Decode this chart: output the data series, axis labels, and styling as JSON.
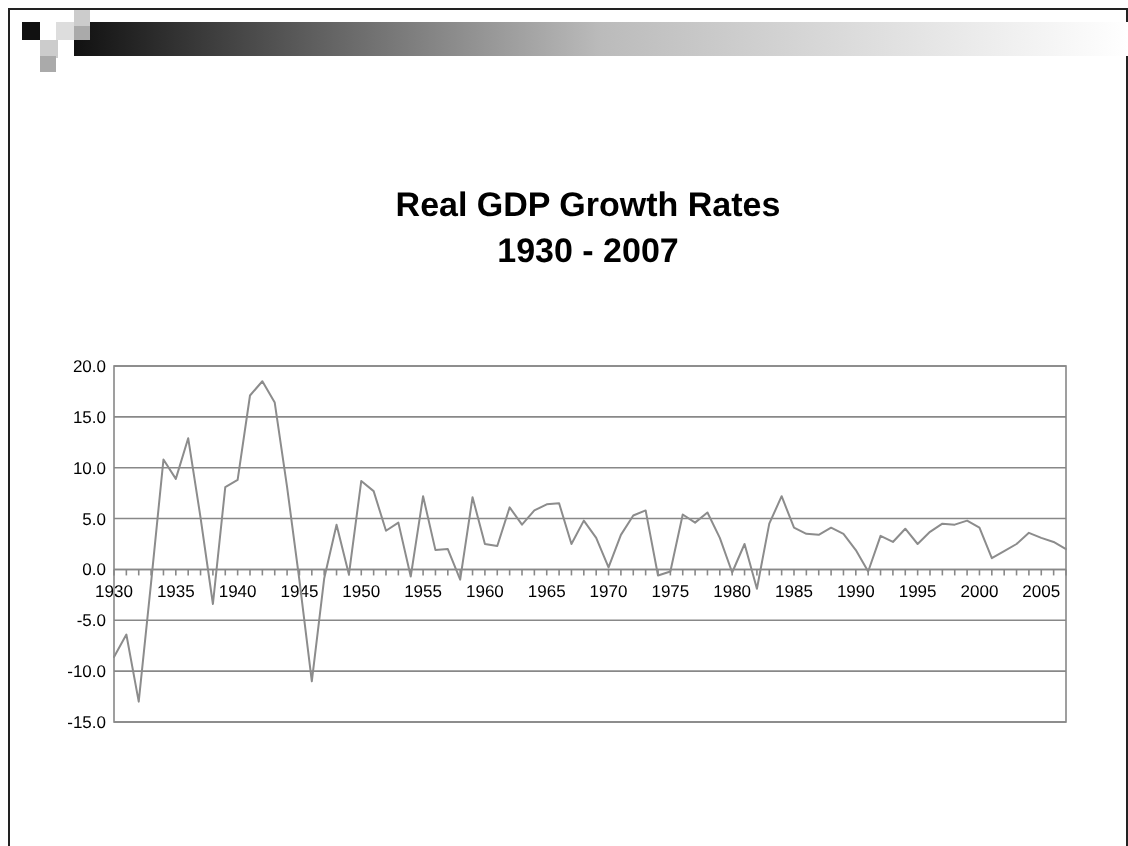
{
  "chart_data": {
    "type": "line",
    "title": "Real GDP Growth Rates\n1930 - 2007",
    "x": [
      1930,
      1931,
      1932,
      1933,
      1934,
      1935,
      1936,
      1937,
      1938,
      1939,
      1940,
      1941,
      1942,
      1943,
      1944,
      1945,
      1946,
      1947,
      1948,
      1949,
      1950,
      1951,
      1952,
      1953,
      1954,
      1955,
      1956,
      1957,
      1958,
      1959,
      1960,
      1961,
      1962,
      1963,
      1964,
      1965,
      1966,
      1967,
      1968,
      1969,
      1970,
      1971,
      1972,
      1973,
      1974,
      1975,
      1976,
      1977,
      1978,
      1979,
      1980,
      1981,
      1982,
      1983,
      1984,
      1985,
      1986,
      1987,
      1988,
      1989,
      1990,
      1991,
      1992,
      1993,
      1994,
      1995,
      1996,
      1997,
      1998,
      1999,
      2000,
      2001,
      2002,
      2003,
      2004,
      2005,
      2006,
      2007
    ],
    "series": [
      {
        "color": "#8c8c8c",
        "values": [
          -8.6,
          -6.4,
          -13.0,
          -1.3,
          10.8,
          8.9,
          12.9,
          5.1,
          -3.4,
          8.1,
          8.8,
          17.1,
          18.5,
          16.4,
          8.1,
          -1.1,
          -11.0,
          -0.9,
          4.4,
          -0.5,
          8.7,
          7.7,
          3.8,
          4.6,
          -0.7,
          7.2,
          1.9,
          2.0,
          -1.0,
          7.1,
          2.5,
          2.3,
          6.1,
          4.4,
          5.8,
          6.4,
          6.5,
          2.5,
          4.8,
          3.1,
          0.2,
          3.4,
          5.3,
          5.8,
          -0.6,
          -0.2,
          5.4,
          4.6,
          5.6,
          3.1,
          -0.3,
          2.5,
          -1.9,
          4.5,
          7.2,
          4.1,
          3.5,
          3.4,
          4.1,
          3.5,
          1.9,
          -0.2,
          3.3,
          2.7,
          4.0,
          2.5,
          3.7,
          4.5,
          4.4,
          4.8,
          4.1,
          1.1,
          1.8,
          2.5,
          3.6,
          3.1,
          2.7,
          2.0
        ]
      }
    ],
    "xlim": [
      1930,
      2007
    ],
    "xticks": [
      1930,
      {
        "value": 1931,
        "label": null
      },
      {
        "value": 1932,
        "label": null
      },
      {
        "value": 1933,
        "label": null
      },
      {
        "value": 1934,
        "label": null
      },
      1935,
      {
        "value": 1936,
        "label": null
      },
      {
        "value": 1937,
        "label": null
      },
      {
        "value": 1938,
        "label": null
      },
      {
        "value": 1939,
        "label": null
      },
      1940,
      {
        "value": 1941,
        "label": null
      },
      {
        "value": 1942,
        "label": null
      },
      {
        "value": 1943,
        "label": null
      },
      {
        "value": 1944,
        "label": null
      },
      1945,
      {
        "value": 1946,
        "label": null
      },
      {
        "value": 1947,
        "label": null
      },
      {
        "value": 1948,
        "label": null
      },
      {
        "value": 1949,
        "label": null
      },
      1950,
      {
        "value": 1951,
        "label": null
      },
      {
        "value": 1952,
        "label": null
      },
      {
        "value": 1953,
        "label": null
      },
      {
        "value": 1954,
        "label": null
      },
      1955,
      {
        "value": 1956,
        "label": null
      },
      {
        "value": 1957,
        "label": null
      },
      {
        "value": 1958,
        "label": null
      },
      {
        "value": 1959,
        "label": null
      },
      1960,
      {
        "value": 1961,
        "label": null
      },
      {
        "value": 1962,
        "label": null
      },
      {
        "value": 1963,
        "label": null
      },
      {
        "value": 1964,
        "label": null
      },
      1965,
      {
        "value": 1966,
        "label": null
      },
      {
        "value": 1967,
        "label": null
      },
      {
        "value": 1968,
        "label": null
      },
      {
        "value": 1969,
        "label": null
      },
      1970,
      {
        "value": 1971,
        "label": null
      },
      {
        "value": 1972,
        "label": null
      },
      {
        "value": 1973,
        "label": null
      },
      {
        "value": 1974,
        "label": null
      },
      1975,
      {
        "value": 1976,
        "label": null
      },
      {
        "value": 1977,
        "label": null
      },
      {
        "value": 1978,
        "label": null
      },
      {
        "value": 1979,
        "label": null
      },
      1980,
      {
        "value": 1981,
        "label": null
      },
      {
        "value": 1982,
        "label": null
      },
      {
        "value": 1983,
        "label": null
      },
      {
        "value": 1984,
        "label": null
      },
      1985,
      {
        "value": 1986,
        "label": null
      },
      {
        "value": 1987,
        "label": null
      },
      {
        "value": 1988,
        "label": null
      },
      {
        "value": 1989,
        "label": null
      },
      1990,
      {
        "value": 1991,
        "label": null
      },
      {
        "value": 1992,
        "label": null
      },
      {
        "value": 1993,
        "label": null
      },
      {
        "value": 1994,
        "label": null
      },
      1995,
      {
        "value": 1996,
        "label": null
      },
      {
        "value": 1997,
        "label": null
      },
      {
        "value": 1998,
        "label": null
      },
      {
        "value": 1999,
        "label": null
      },
      2000,
      {
        "value": 2001,
        "label": null
      },
      {
        "value": 2002,
        "label": null
      },
      {
        "value": 2003,
        "label": null
      },
      {
        "value": 2004,
        "label": null
      },
      2005,
      {
        "value": 2006,
        "label": null
      },
      {
        "value": 2007,
        "label": null
      }
    ],
    "ylim": [
      -15,
      20
    ],
    "yticks": [
      {
        "value": -15,
        "label": "-15.0"
      },
      {
        "value": -10,
        "label": "-10.0"
      },
      {
        "value": -5,
        "label": "-5.0"
      },
      {
        "value": 0,
        "label": "0.0"
      },
      {
        "value": 5,
        "label": "5.0"
      },
      {
        "value": 10,
        "label": "10.0"
      },
      {
        "value": 15,
        "label": "15.0"
      },
      {
        "value": 20,
        "label": "20.0"
      }
    ],
    "grid": "y",
    "marker": "none",
    "line_style": "solid"
  }
}
